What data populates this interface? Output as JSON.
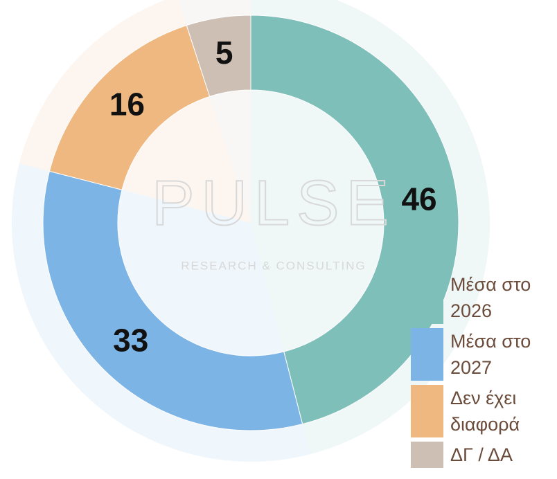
{
  "chart_data": {
    "type": "donut",
    "categories": [
      "Μέσα στο 2026",
      "Μέσα στο 2027",
      "Δεν έχει διαφορά",
      "ΔΓ / ΔΑ"
    ],
    "values": [
      46,
      33,
      16,
      5
    ],
    "colors": [
      "#7fbfba",
      "#7db4e6",
      "#efb880",
      "#cdbfb3"
    ],
    "watermark": [
      "PULSE",
      "RESEARCH & CONSULTING"
    ]
  }
}
